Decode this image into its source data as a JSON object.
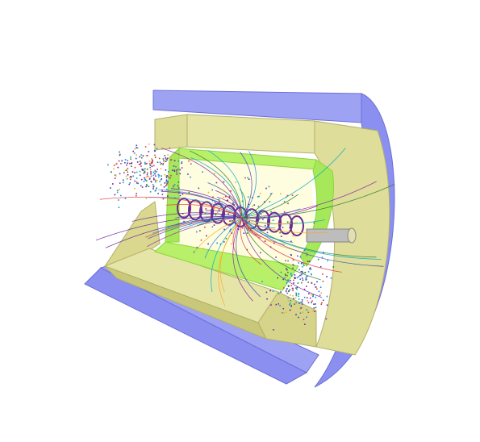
{
  "image": {
    "subject": "cutaway-3d-detector-event-display",
    "colors": {
      "background": "#ffffff",
      "outer_shell": "#8a8ff0",
      "outer_shell_dark": "#6c70d8",
      "calorimeter": "#dedd99",
      "calorimeter_dark": "#c9c77a",
      "inner_frame": "#b8f06a",
      "inner_frame_dark": "#8ad63c",
      "tracker_interior": "#fffde0",
      "beam_pipe": "#a6a6a6",
      "helix_tracks": "#6a2c91"
    },
    "track_colors": [
      "#6a1b9a",
      "#1e88e5",
      "#e53935",
      "#2e7d32",
      "#f9a825",
      "#00acc1",
      "#8e24aa",
      "#3949ab"
    ]
  }
}
